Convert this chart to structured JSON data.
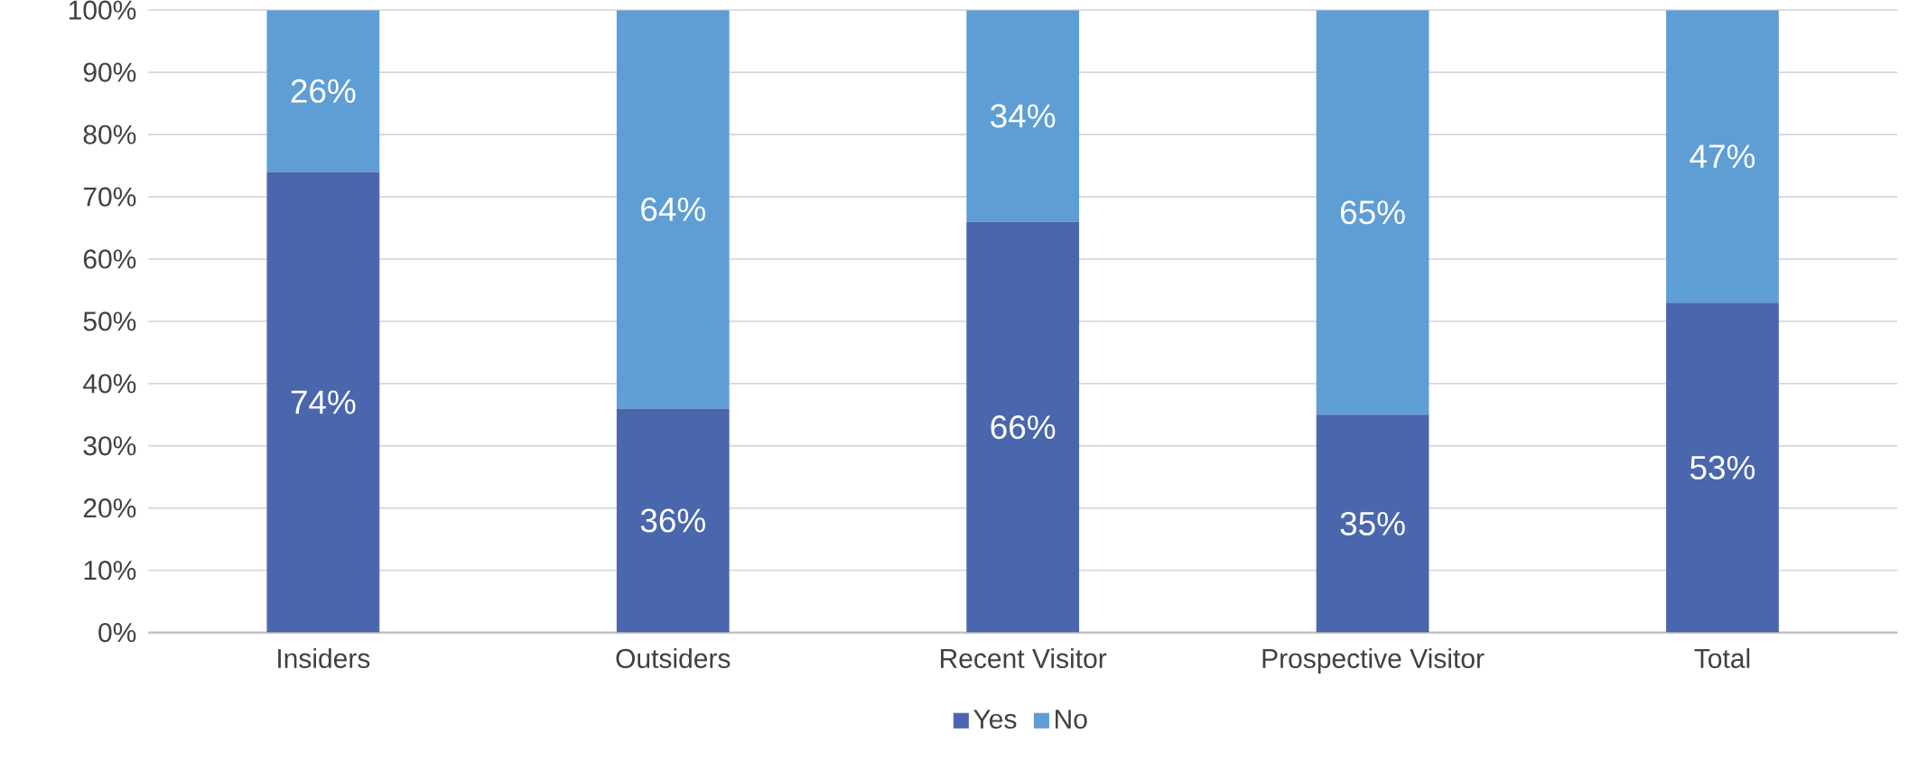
{
  "chart_data": {
    "type": "bar",
    "stacked": true,
    "categories": [
      "Insiders",
      "Outsiders",
      "Recent Visitor",
      "Prospective Visitor",
      "Total"
    ],
    "series": [
      {
        "name": "Yes",
        "color": "#4a67ad",
        "values": [
          74,
          36,
          66,
          35,
          53
        ],
        "value_labels": [
          "74%",
          "36%",
          "66%",
          "35%",
          "53%"
        ]
      },
      {
        "name": "No",
        "color": "#5f9ed4",
        "values": [
          26,
          64,
          34,
          65,
          47
        ],
        "value_labels": [
          "26%",
          "64%",
          "34%",
          "65%",
          "47%"
        ]
      }
    ],
    "ylim": [
      0,
      100
    ],
    "yticks": [
      {
        "value": 0,
        "label": "0%"
      },
      {
        "value": 10,
        "label": "10%"
      },
      {
        "value": 20,
        "label": "20%"
      },
      {
        "value": 30,
        "label": "30%"
      },
      {
        "value": 40,
        "label": "40%"
      },
      {
        "value": 50,
        "label": "50%"
      },
      {
        "value": 60,
        "label": "60%"
      },
      {
        "value": 70,
        "label": "70%"
      },
      {
        "value": 80,
        "label": "80%"
      },
      {
        "value": 90,
        "label": "90%"
      },
      {
        "value": 100,
        "label": "100%"
      }
    ],
    "grid": "y",
    "legend": "bottom"
  }
}
